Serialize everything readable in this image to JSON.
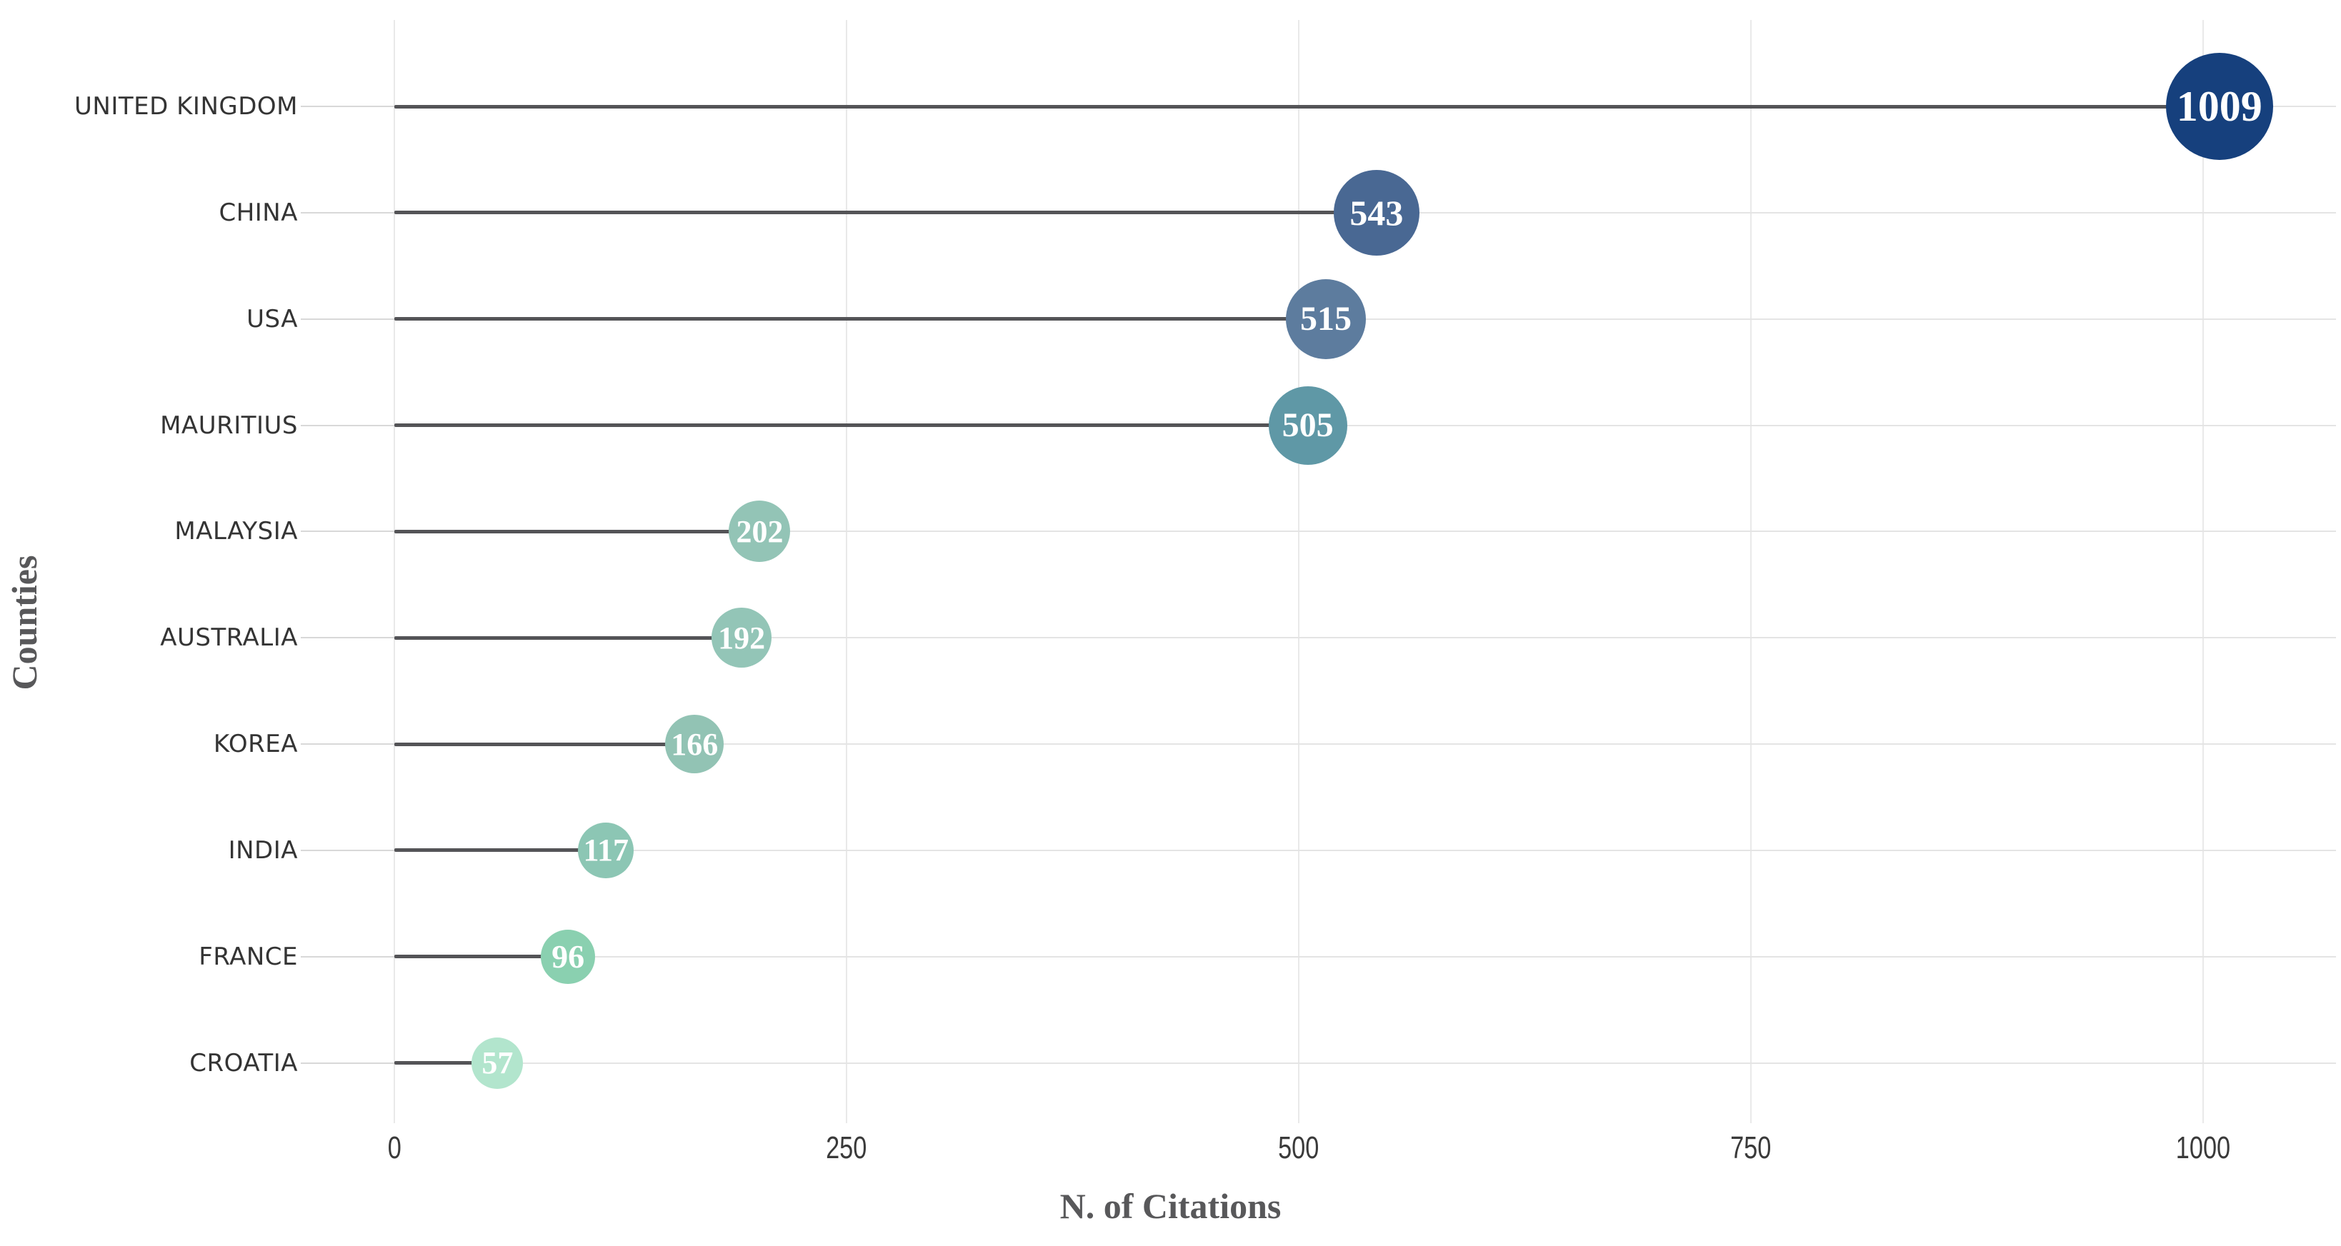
{
  "chart_data": {
    "type": "lollipop",
    "orientation": "horizontal",
    "title": "",
    "xlabel": "N. of Citations",
    "ylabel": "Counties",
    "xlim": [
      0,
      1075
    ],
    "xticks": [
      0,
      250,
      500,
      750,
      1000
    ],
    "xtick_labels": [
      "0",
      "250",
      "500",
      "750",
      "1000"
    ],
    "grid": true,
    "legend": false,
    "categories": [
      "UNITED KINGDOM",
      "CHINA",
      "USA",
      "MAURITIUS",
      "MALAYSIA",
      "AUSTRALIA",
      "KOREA",
      "INDIA",
      "FRANCE",
      "CROATIA"
    ],
    "values": [
      1009,
      543,
      515,
      505,
      202,
      192,
      166,
      117,
      96,
      57
    ],
    "bubble_colors": [
      "#16407d",
      "#496893",
      "#5d7c9e",
      "#5f98a6",
      "#93c4b6",
      "#93c5b7",
      "#92c3b4",
      "#8cc6b4",
      "#8ad0b0",
      "#b2e5cd"
    ],
    "value_label_color": "#ffffff",
    "stem_color": "#545457",
    "gridline_color": "#e9e9e9",
    "row_line_color": "#e4e4e4",
    "category_label_color": "#343434",
    "tick_label_color": "#3a3a3a",
    "axis_title_color": "#58585a",
    "background_color": "#ffffff"
  }
}
